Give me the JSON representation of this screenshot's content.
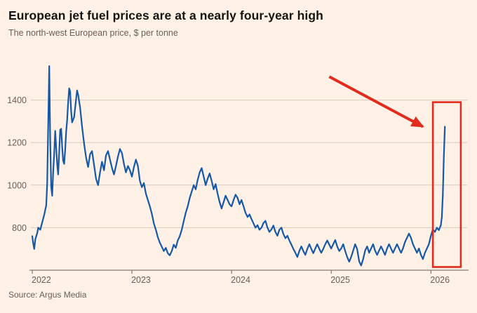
{
  "header": {
    "title": "European jet fuel prices are at a nearly four-year high",
    "subtitle": "The north-west European price, $ per tonne"
  },
  "footer": {
    "source": "Source: Argus Media"
  },
  "colors": {
    "background": "#fff1e5",
    "line": "#1658a8",
    "grid": "#d6cabb",
    "axis": "#66605b",
    "tick_text": "#66605b",
    "title_text": "#161412",
    "highlight_red": "#e12b1e"
  },
  "chart_data": {
    "type": "line",
    "title": "European jet fuel prices are at a nearly four-year high",
    "subtitle": "The north-west European price, $ per tonne",
    "source": "Source: Argus Media",
    "xlabel": "",
    "ylabel": "$ per tonne",
    "x_unit": "decimal_year",
    "xlim": [
      2022.0,
      2026.35
    ],
    "ylim": [
      600,
      1590
    ],
    "yticks": [
      800,
      1000,
      1200,
      1400
    ],
    "xticks": [
      2022,
      2023,
      2024,
      2025,
      2026
    ],
    "xtick_labels": [
      "2022",
      "2023",
      "2024",
      "2025",
      "2026"
    ],
    "grid": "horizontal",
    "legend": "none",
    "series_name": "North-west European jet fuel price",
    "points": [
      [
        2022.0,
        760
      ],
      [
        2022.01,
        725
      ],
      [
        2022.02,
        700
      ],
      [
        2022.03,
        745
      ],
      [
        2022.05,
        775
      ],
      [
        2022.06,
        800
      ],
      [
        2022.08,
        790
      ],
      [
        2022.1,
        825
      ],
      [
        2022.12,
        860
      ],
      [
        2022.14,
        905
      ],
      [
        2022.15,
        1010
      ],
      [
        2022.16,
        1280
      ],
      [
        2022.17,
        1560
      ],
      [
        2022.18,
        1210
      ],
      [
        2022.19,
        990
      ],
      [
        2022.2,
        950
      ],
      [
        2022.21,
        1060
      ],
      [
        2022.22,
        1150
      ],
      [
        2022.23,
        1255
      ],
      [
        2022.24,
        1175
      ],
      [
        2022.25,
        1100
      ],
      [
        2022.26,
        1050
      ],
      [
        2022.27,
        1155
      ],
      [
        2022.28,
        1260
      ],
      [
        2022.29,
        1265
      ],
      [
        2022.3,
        1180
      ],
      [
        2022.31,
        1115
      ],
      [
        2022.32,
        1100
      ],
      [
        2022.33,
        1165
      ],
      [
        2022.34,
        1250
      ],
      [
        2022.35,
        1305
      ],
      [
        2022.36,
        1385
      ],
      [
        2022.37,
        1455
      ],
      [
        2022.38,
        1440
      ],
      [
        2022.39,
        1350
      ],
      [
        2022.4,
        1295
      ],
      [
        2022.42,
        1320
      ],
      [
        2022.44,
        1405
      ],
      [
        2022.45,
        1445
      ],
      [
        2022.46,
        1425
      ],
      [
        2022.48,
        1365
      ],
      [
        2022.5,
        1275
      ],
      [
        2022.52,
        1195
      ],
      [
        2022.54,
        1130
      ],
      [
        2022.56,
        1085
      ],
      [
        2022.58,
        1145
      ],
      [
        2022.6,
        1160
      ],
      [
        2022.62,
        1095
      ],
      [
        2022.64,
        1030
      ],
      [
        2022.66,
        1000
      ],
      [
        2022.68,
        1060
      ],
      [
        2022.7,
        1110
      ],
      [
        2022.72,
        1070
      ],
      [
        2022.74,
        1140
      ],
      [
        2022.76,
        1160
      ],
      [
        2022.78,
        1120
      ],
      [
        2022.8,
        1080
      ],
      [
        2022.82,
        1050
      ],
      [
        2022.84,
        1090
      ],
      [
        2022.86,
        1135
      ],
      [
        2022.88,
        1170
      ],
      [
        2022.9,
        1150
      ],
      [
        2022.92,
        1100
      ],
      [
        2022.94,
        1060
      ],
      [
        2022.96,
        1090
      ],
      [
        2022.98,
        1070
      ],
      [
        2023.0,
        1040
      ],
      [
        2023.02,
        1085
      ],
      [
        2023.04,
        1120
      ],
      [
        2023.06,
        1090
      ],
      [
        2023.08,
        1020
      ],
      [
        2023.1,
        990
      ],
      [
        2023.12,
        1010
      ],
      [
        2023.14,
        960
      ],
      [
        2023.16,
        930
      ],
      [
        2023.18,
        900
      ],
      [
        2023.2,
        865
      ],
      [
        2023.22,
        820
      ],
      [
        2023.24,
        790
      ],
      [
        2023.26,
        755
      ],
      [
        2023.28,
        730
      ],
      [
        2023.3,
        710
      ],
      [
        2023.32,
        690
      ],
      [
        2023.34,
        705
      ],
      [
        2023.36,
        680
      ],
      [
        2023.38,
        670
      ],
      [
        2023.4,
        690
      ],
      [
        2023.42,
        720
      ],
      [
        2023.44,
        705
      ],
      [
        2023.46,
        740
      ],
      [
        2023.48,
        760
      ],
      [
        2023.5,
        790
      ],
      [
        2023.52,
        830
      ],
      [
        2023.54,
        870
      ],
      [
        2023.56,
        900
      ],
      [
        2023.58,
        940
      ],
      [
        2023.6,
        970
      ],
      [
        2023.62,
        1000
      ],
      [
        2023.64,
        980
      ],
      [
        2023.66,
        1025
      ],
      [
        2023.68,
        1060
      ],
      [
        2023.7,
        1080
      ],
      [
        2023.72,
        1040
      ],
      [
        2023.74,
        1000
      ],
      [
        2023.76,
        1030
      ],
      [
        2023.78,
        1055
      ],
      [
        2023.8,
        1020
      ],
      [
        2023.82,
        980
      ],
      [
        2023.84,
        1005
      ],
      [
        2023.86,
        960
      ],
      [
        2023.88,
        920
      ],
      [
        2023.9,
        890
      ],
      [
        2023.92,
        920
      ],
      [
        2023.94,
        950
      ],
      [
        2023.96,
        930
      ],
      [
        2023.98,
        910
      ],
      [
        2024.0,
        900
      ],
      [
        2024.02,
        930
      ],
      [
        2024.04,
        955
      ],
      [
        2024.06,
        940
      ],
      [
        2024.08,
        910
      ],
      [
        2024.1,
        930
      ],
      [
        2024.12,
        900
      ],
      [
        2024.14,
        870
      ],
      [
        2024.16,
        850
      ],
      [
        2024.18,
        862
      ],
      [
        2024.2,
        840
      ],
      [
        2024.22,
        820
      ],
      [
        2024.24,
        800
      ],
      [
        2024.26,
        812
      ],
      [
        2024.28,
        790
      ],
      [
        2024.3,
        800
      ],
      [
        2024.32,
        822
      ],
      [
        2024.34,
        832
      ],
      [
        2024.36,
        800
      ],
      [
        2024.38,
        780
      ],
      [
        2024.4,
        792
      ],
      [
        2024.42,
        810
      ],
      [
        2024.44,
        780
      ],
      [
        2024.46,
        762
      ],
      [
        2024.48,
        790
      ],
      [
        2024.5,
        800
      ],
      [
        2024.52,
        770
      ],
      [
        2024.54,
        750
      ],
      [
        2024.56,
        762
      ],
      [
        2024.58,
        740
      ],
      [
        2024.6,
        720
      ],
      [
        2024.62,
        700
      ],
      [
        2024.64,
        682
      ],
      [
        2024.66,
        662
      ],
      [
        2024.68,
        690
      ],
      [
        2024.7,
        712
      ],
      [
        2024.72,
        690
      ],
      [
        2024.74,
        672
      ],
      [
        2024.76,
        700
      ],
      [
        2024.78,
        722
      ],
      [
        2024.8,
        700
      ],
      [
        2024.82,
        680
      ],
      [
        2024.84,
        702
      ],
      [
        2024.86,
        722
      ],
      [
        2024.88,
        700
      ],
      [
        2024.9,
        682
      ],
      [
        2024.92,
        700
      ],
      [
        2024.94,
        722
      ],
      [
        2024.96,
        740
      ],
      [
        2024.98,
        720
      ],
      [
        2025.0,
        702
      ],
      [
        2025.02,
        722
      ],
      [
        2025.04,
        742
      ],
      [
        2025.06,
        712
      ],
      [
        2025.08,
        690
      ],
      [
        2025.1,
        702
      ],
      [
        2025.12,
        722
      ],
      [
        2025.14,
        690
      ],
      [
        2025.16,
        662
      ],
      [
        2025.18,
        640
      ],
      [
        2025.2,
        662
      ],
      [
        2025.22,
        692
      ],
      [
        2025.24,
        722
      ],
      [
        2025.26,
        700
      ],
      [
        2025.28,
        642
      ],
      [
        2025.3,
        622
      ],
      [
        2025.32,
        652
      ],
      [
        2025.34,
        692
      ],
      [
        2025.36,
        712
      ],
      [
        2025.38,
        682
      ],
      [
        2025.4,
        702
      ],
      [
        2025.42,
        722
      ],
      [
        2025.44,
        692
      ],
      [
        2025.46,
        672
      ],
      [
        2025.48,
        692
      ],
      [
        2025.5,
        712
      ],
      [
        2025.52,
        692
      ],
      [
        2025.54,
        672
      ],
      [
        2025.56,
        702
      ],
      [
        2025.58,
        722
      ],
      [
        2025.6,
        702
      ],
      [
        2025.62,
        682
      ],
      [
        2025.64,
        702
      ],
      [
        2025.66,
        722
      ],
      [
        2025.68,
        702
      ],
      [
        2025.7,
        682
      ],
      [
        2025.72,
        702
      ],
      [
        2025.74,
        732
      ],
      [
        2025.76,
        752
      ],
      [
        2025.78,
        772
      ],
      [
        2025.8,
        752
      ],
      [
        2025.82,
        722
      ],
      [
        2025.84,
        702
      ],
      [
        2025.86,
        682
      ],
      [
        2025.88,
        702
      ],
      [
        2025.9,
        672
      ],
      [
        2025.92,
        652
      ],
      [
        2025.94,
        682
      ],
      [
        2025.96,
        702
      ],
      [
        2025.98,
        722
      ],
      [
        2026.0,
        762
      ],
      [
        2026.02,
        792
      ],
      [
        2026.04,
        780
      ],
      [
        2026.06,
        800
      ],
      [
        2026.08,
        788
      ],
      [
        2026.1,
        812
      ],
      [
        2026.11,
        850
      ],
      [
        2026.12,
        955
      ],
      [
        2026.13,
        1130
      ],
      [
        2026.14,
        1275
      ]
    ],
    "annotations": {
      "arrow": {
        "from": [
          2024.98,
          1510
        ],
        "to": [
          2025.92,
          1275
        ]
      },
      "highlight_box": {
        "x": [
          2026.02,
          2026.3
        ],
        "y": [
          615,
          1390
        ]
      }
    }
  }
}
